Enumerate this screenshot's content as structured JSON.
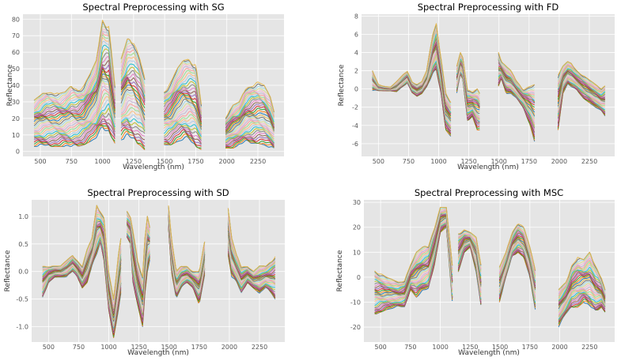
{
  "series_colors": [
    "#1f77b4",
    "#ff7f0e",
    "#2ca02c",
    "#d62728",
    "#9467bd",
    "#8c564b",
    "#e377c2",
    "#7f7f7f",
    "#bcbd22",
    "#17becf",
    "#aec7e8",
    "#ffbb78",
    "#98df8a",
    "#ff9896",
    "#c5b0d5",
    "#f7b6d2",
    "#dbdb8d",
    "#9edae5",
    "#6f6f6f",
    "#e6b84a"
  ],
  "chart_data": [
    {
      "type": "line",
      "id": "sg",
      "title": "Spectral Preprocessing with SG",
      "xlabel": "Wavelength (nm)",
      "ylabel": "Reflectance",
      "xlim": [
        360,
        2460
      ],
      "ylim": [
        -3,
        83
      ],
      "xticks": [
        500,
        750,
        1000,
        1250,
        1500,
        1750,
        2000,
        2250
      ],
      "yticks": [
        0,
        10,
        20,
        30,
        40,
        50,
        60,
        70,
        80
      ],
      "n_series": 40,
      "segments": [
        [
          450,
          1100
        ],
        [
          1150,
          1340
        ],
        [
          1495,
          1800
        ],
        [
          1990,
          2380
        ]
      ],
      "envelope": {
        "x": [
          450,
          550,
          650,
          700,
          750,
          800,
          850,
          900,
          950,
          1000,
          1050,
          1100,
          1150,
          1200,
          1250,
          1300,
          1340,
          1495,
          1550,
          1600,
          1650,
          1700,
          1750,
          1800,
          1990,
          2050,
          2100,
          2150,
          2200,
          2250,
          2300,
          2350,
          2380
        ],
        "lower": [
          3,
          3,
          3,
          3,
          2,
          3,
          4,
          6,
          8,
          12,
          12,
          5,
          7,
          8,
          6,
          4,
          1,
          4,
          4,
          6,
          7,
          6,
          3,
          1,
          2,
          2,
          4,
          5,
          5,
          5,
          4,
          2,
          1
        ],
        "upper": [
          31,
          37,
          35,
          36,
          40,
          38,
          40,
          47,
          55,
          80,
          78,
          40,
          56,
          68,
          68,
          58,
          44,
          37,
          42,
          50,
          55,
          56,
          54,
          26,
          21,
          28,
          30,
          38,
          41,
          42,
          40,
          33,
          24
        ]
      }
    },
    {
      "type": "line",
      "id": "fd",
      "title": "Spectral Preprocessing with FD",
      "xlabel": "Wavelength (nm)",
      "ylabel": "Reflectance",
      "xlim": [
        360,
        2460
      ],
      "ylim": [
        -7.4,
        8.2
      ],
      "xticks": [
        500,
        750,
        1000,
        1250,
        1500,
        1750,
        2000,
        2250
      ],
      "yticks": [
        -6,
        -4,
        -2,
        0,
        2,
        4,
        6,
        8
      ],
      "n_series": 40,
      "segments": [
        [
          450,
          1100
        ],
        [
          1150,
          1340
        ],
        [
          1495,
          1800
        ],
        [
          1990,
          2380
        ]
      ],
      "envelope": {
        "x": [
          450,
          500,
          550,
          600,
          650,
          700,
          740,
          780,
          820,
          860,
          900,
          950,
          980,
          1020,
          1060,
          1100,
          1150,
          1180,
          1200,
          1240,
          1280,
          1320,
          1340,
          1495,
          1520,
          1560,
          1600,
          1640,
          1700,
          1760,
          1800,
          1990,
          2030,
          2070,
          2100,
          2150,
          2200,
          2250,
          2300,
          2350,
          2380
        ],
        "lower": [
          -0.2,
          -0.2,
          -0.2,
          -0.2,
          -0.3,
          0.2,
          0.6,
          -0.4,
          -0.8,
          -0.5,
          0.2,
          1.5,
          2.0,
          -0.5,
          -4.5,
          -5.2,
          -0.5,
          1.5,
          1.0,
          -3.5,
          -3.0,
          -4.5,
          -4.5,
          0.3,
          1.2,
          -0.5,
          -0.5,
          -1.0,
          -2.0,
          -4.0,
          -6.0,
          -4.5,
          -0.5,
          0.5,
          0.2,
          -0.2,
          -1.0,
          -1.5,
          -2.0,
          -2.5,
          -3.0
        ],
        "upper": [
          2.0,
          0.5,
          0.3,
          0.2,
          0.8,
          1.5,
          2.0,
          0.8,
          0.5,
          0.8,
          2.0,
          6.0,
          7.3,
          3.5,
          -0.5,
          -1.5,
          2.5,
          4.0,
          3.5,
          0.0,
          -0.3,
          0.0,
          -0.5,
          4.2,
          3.0,
          2.5,
          2.0,
          1.0,
          0.0,
          0.3,
          0.5,
          1.5,
          2.5,
          3.0,
          2.8,
          2.0,
          1.5,
          1.0,
          0.5,
          0.0,
          0.5
        ]
      }
    },
    {
      "type": "line",
      "id": "sd",
      "title": "Spectral Preprocessing with SD",
      "xlabel": "Wavelength (nm)",
      "ylabel": "Reflectance",
      "xlim": [
        360,
        2460
      ],
      "ylim": [
        -1.28,
        1.3
      ],
      "xticks": [
        500,
        750,
        1000,
        1250,
        1500,
        1750,
        2000,
        2250
      ],
      "yticks": [
        -1.0,
        -0.5,
        0.0,
        0.5,
        1.0
      ],
      "n_series": 40,
      "segments": [
        [
          450,
          1100
        ],
        [
          1150,
          1340
        ],
        [
          1495,
          1800
        ],
        [
          1990,
          2380
        ]
      ],
      "envelope": {
        "x": [
          450,
          500,
          550,
          600,
          650,
          700,
          740,
          780,
          820,
          860,
          900,
          930,
          960,
          1000,
          1040,
          1080,
          1100,
          1150,
          1180,
          1200,
          1240,
          1280,
          1300,
          1320,
          1340,
          1495,
          1520,
          1560,
          1600,
          1650,
          1700,
          1750,
          1800,
          1990,
          2020,
          2060,
          2100,
          2150,
          2200,
          2250,
          2300,
          2350,
          2380
        ],
        "lower": [
          -0.5,
          -0.2,
          -0.1,
          -0.1,
          -0.1,
          0.0,
          -0.1,
          -0.3,
          -0.2,
          0.1,
          0.3,
          0.5,
          0.2,
          -0.7,
          -1.2,
          -0.7,
          -0.4,
          0.6,
          0.5,
          -0.2,
          -0.6,
          -1.0,
          -0.4,
          0.0,
          0.2,
          0.8,
          0.0,
          -0.5,
          -0.3,
          -0.2,
          -0.3,
          -0.6,
          0.0,
          0.3,
          -0.1,
          -0.2,
          -0.4,
          -0.2,
          -0.3,
          -0.4,
          -0.3,
          -0.4,
          -0.5
        ],
        "upper": [
          0.1,
          0.1,
          0.1,
          0.1,
          0.2,
          0.3,
          0.2,
          0.1,
          0.4,
          0.6,
          1.2,
          1.1,
          1.0,
          0.0,
          -0.5,
          0.3,
          0.6,
          1.1,
          1.0,
          0.8,
          0.2,
          -0.1,
          0.6,
          1.0,
          0.8,
          1.2,
          0.6,
          0.0,
          0.1,
          0.1,
          0.0,
          0.0,
          0.6,
          1.15,
          0.6,
          0.3,
          0.1,
          0.1,
          0.0,
          0.1,
          0.1,
          0.2,
          0.3
        ]
      }
    },
    {
      "type": "line",
      "id": "msc",
      "title": "Spectral Preprocessing with MSC",
      "xlabel": "Wavelength (nm)",
      "ylabel": "Reflectance",
      "xlim": [
        360,
        2460
      ],
      "ylim": [
        -26,
        31
      ],
      "xticks": [
        500,
        750,
        1000,
        1250,
        1500,
        1750,
        2000,
        2250
      ],
      "yticks": [
        -20,
        -10,
        0,
        10,
        20,
        30
      ],
      "n_series": 40,
      "segments": [
        [
          450,
          1100
        ],
        [
          1150,
          1340
        ],
        [
          1495,
          1800
        ],
        [
          1990,
          2380
        ]
      ],
      "envelope": {
        "x": [
          450,
          550,
          650,
          700,
          750,
          800,
          850,
          900,
          950,
          1000,
          1050,
          1100,
          1150,
          1200,
          1250,
          1300,
          1340,
          1495,
          1550,
          1600,
          1650,
          1700,
          1750,
          1800,
          1990,
          2050,
          2100,
          2150,
          2200,
          2250,
          2300,
          2350,
          2380
        ],
        "lower": [
          -15,
          -13,
          -12,
          -12,
          -5,
          -8,
          -6,
          -5,
          5,
          18,
          20,
          -10,
          2,
          10,
          12,
          2,
          -12,
          -10,
          0,
          8,
          10,
          8,
          0,
          -15,
          -20,
          -15,
          -12,
          -12,
          -10,
          -12,
          -14,
          -12,
          -14
        ],
        "upper": [
          3,
          0,
          -2,
          -1,
          5,
          10,
          12,
          13,
          20,
          28,
          28,
          5,
          18,
          19,
          18,
          16,
          5,
          4,
          10,
          18,
          22,
          20,
          12,
          2,
          -5,
          -2,
          5,
          8,
          7,
          10,
          5,
          0,
          -5
        ]
      }
    }
  ]
}
